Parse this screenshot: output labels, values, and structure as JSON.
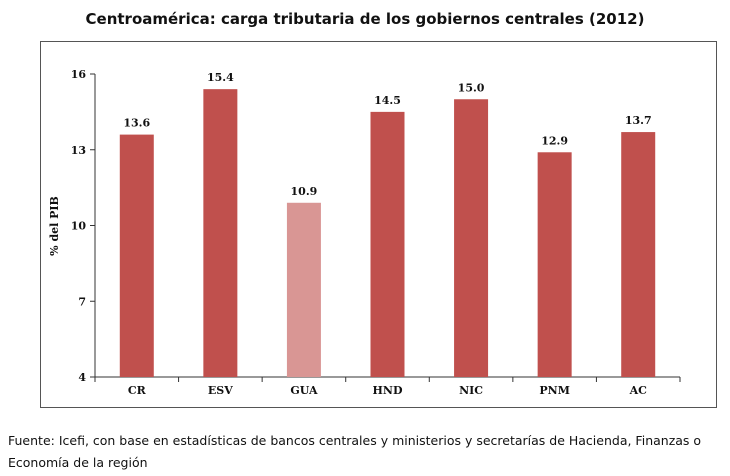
{
  "chart_data": {
    "type": "bar",
    "title": "Centroamérica: carga tributaria de los gobiernos centrales (2012)",
    "categories": [
      "CR",
      "ESV",
      "GUA",
      "HND",
      "NIC",
      "PNM",
      "AC"
    ],
    "values": [
      13.6,
      15.4,
      10.9,
      14.5,
      15.0,
      12.9,
      13.7
    ],
    "data_labels": [
      "13.6",
      "15.4",
      "10.9",
      "14.5",
      "15.0",
      "12.9",
      "13.7"
    ],
    "highlight_category": "GUA",
    "xlabel": "",
    "ylabel": "% del PIB",
    "ylim": [
      4,
      16
    ],
    "yticks": [
      "4",
      "7",
      "10",
      "13",
      "16"
    ],
    "grid": false,
    "bar_color": "#c0504d",
    "highlight_color": "#d99694"
  },
  "source_note": "Fuente: Icefi, con base en estadísticas de bancos centrales y ministerios y secretarías de Hacienda, Finanzas o Economía de la región"
}
